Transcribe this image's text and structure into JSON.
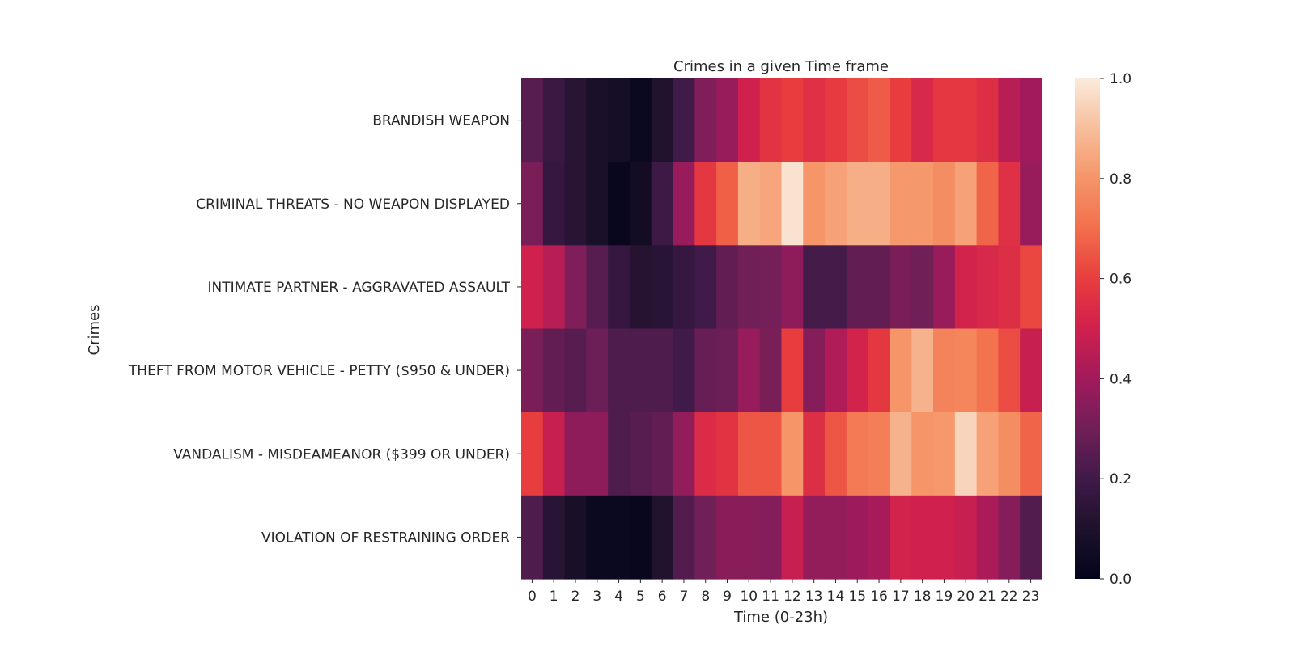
{
  "chart_data": {
    "type": "heatmap",
    "title": "Crimes in a given Time frame",
    "xlabel": "Time (0-23h)",
    "ylabel": "Crimes",
    "x": [
      "0",
      "1",
      "2",
      "3",
      "4",
      "5",
      "6",
      "7",
      "8",
      "9",
      "10",
      "11",
      "12",
      "13",
      "14",
      "15",
      "16",
      "17",
      "18",
      "19",
      "20",
      "21",
      "22",
      "23"
    ],
    "y": [
      "BRANDISH WEAPON",
      "CRIMINAL THREATS - NO WEAPON DISPLAYED",
      "INTIMATE PARTNER - AGGRAVATED ASSAULT",
      "THEFT FROM MOTOR VEHICLE - PETTY ($950 & UNDER)",
      "VANDALISM - MISDEAMEANOR ($399 OR UNDER)",
      "VIOLATION OF RESTRAINING ORDER"
    ],
    "values": [
      [
        0.25,
        0.18,
        0.13,
        0.09,
        0.07,
        0.03,
        0.11,
        0.2,
        0.33,
        0.38,
        0.5,
        0.57,
        0.6,
        0.56,
        0.59,
        0.63,
        0.66,
        0.6,
        0.53,
        0.58,
        0.58,
        0.55,
        0.45,
        0.4
      ],
      [
        0.32,
        0.17,
        0.13,
        0.09,
        0.02,
        0.06,
        0.19,
        0.38,
        0.58,
        0.67,
        0.86,
        0.84,
        0.98,
        0.8,
        0.83,
        0.86,
        0.86,
        0.81,
        0.81,
        0.78,
        0.83,
        0.68,
        0.56,
        0.38
      ],
      [
        0.5,
        0.45,
        0.33,
        0.25,
        0.17,
        0.12,
        0.13,
        0.17,
        0.2,
        0.27,
        0.3,
        0.31,
        0.36,
        0.21,
        0.21,
        0.27,
        0.27,
        0.32,
        0.3,
        0.38,
        0.51,
        0.53,
        0.55,
        0.62
      ],
      [
        0.32,
        0.27,
        0.25,
        0.29,
        0.23,
        0.23,
        0.23,
        0.2,
        0.28,
        0.29,
        0.38,
        0.32,
        0.6,
        0.34,
        0.43,
        0.51,
        0.58,
        0.8,
        0.87,
        0.75,
        0.76,
        0.71,
        0.63,
        0.48
      ],
      [
        0.6,
        0.48,
        0.36,
        0.36,
        0.23,
        0.25,
        0.27,
        0.37,
        0.54,
        0.57,
        0.65,
        0.65,
        0.8,
        0.55,
        0.65,
        0.73,
        0.74,
        0.87,
        0.8,
        0.81,
        0.95,
        0.83,
        0.78,
        0.68
      ],
      [
        0.23,
        0.13,
        0.08,
        0.03,
        0.03,
        0.02,
        0.11,
        0.24,
        0.3,
        0.35,
        0.35,
        0.34,
        0.48,
        0.37,
        0.37,
        0.39,
        0.41,
        0.51,
        0.5,
        0.5,
        0.48,
        0.42,
        0.34,
        0.24
      ]
    ],
    "vmin": 0,
    "vmax": 1,
    "colorbar": {
      "ticks": [
        "0.0",
        "0.2",
        "0.4",
        "0.6",
        "0.8",
        "1.0"
      ],
      "colormap": "rocket"
    },
    "grid": false,
    "legend": "right colorbar"
  }
}
